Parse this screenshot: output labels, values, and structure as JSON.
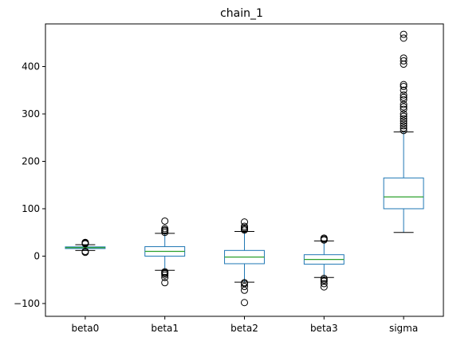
{
  "chart_data": {
    "type": "box",
    "title": "chain_1",
    "xlabel": "",
    "ylabel": "",
    "ylim": [
      -127,
      490
    ],
    "yticks": [
      -100,
      0,
      100,
      200,
      300,
      400
    ],
    "grid": false,
    "colors": {
      "box": "#1f77b4",
      "median": "#2ca02c",
      "whisker_cap": "#000000",
      "flier": "#000000"
    },
    "series": [
      {
        "name": "beta0",
        "q1": 16,
        "median": 18,
        "q3": 19.5,
        "whisker_low": 12,
        "whisker_high": 24,
        "fliers": [
          8,
          10,
          26,
          27,
          28,
          29
        ]
      },
      {
        "name": "beta1",
        "q1": 0,
        "median": 10,
        "q3": 20,
        "whisker_low": -30,
        "whisker_high": 48,
        "fliers": [
          -56,
          -45,
          -40,
          -37,
          -35,
          -33,
          50,
          53,
          55,
          58,
          74
        ]
      },
      {
        "name": "beta2",
        "q1": -16,
        "median": -2,
        "q3": 12,
        "whisker_low": -55,
        "whisker_high": 52,
        "fliers": [
          -98,
          -72,
          -64,
          -58,
          -56,
          55,
          57,
          60,
          63,
          72
        ]
      },
      {
        "name": "beta3",
        "q1": -17,
        "median": -7,
        "q3": 3,
        "whisker_low": -45,
        "whisker_high": 32,
        "fliers": [
          -65,
          -58,
          -53,
          -50,
          -47,
          34,
          36,
          38
        ]
      },
      {
        "name": "sigma",
        "q1": 100,
        "median": 125,
        "q3": 165,
        "whisker_low": 50,
        "whisker_high": 262,
        "fliers": [
          265,
          270,
          275,
          280,
          285,
          290,
          295,
          300,
          310,
          315,
          320,
          330,
          335,
          340,
          350,
          358,
          362,
          405,
          412,
          418,
          460,
          468
        ]
      }
    ]
  }
}
